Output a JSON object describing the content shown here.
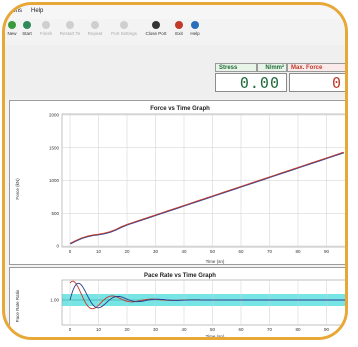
{
  "menu": {
    "item1": "ions",
    "item2": "Help"
  },
  "toolbar": [
    {
      "label": "New",
      "color": "#3b9b3b",
      "enabled": true
    },
    {
      "label": "Start",
      "color": "#2e8b57",
      "enabled": true
    },
    {
      "label": "Finish",
      "color": "#cccccc",
      "enabled": false
    },
    {
      "label": "Restart Te",
      "color": "#cccccc",
      "enabled": false
    },
    {
      "label": "Repeat",
      "color": "#cccccc",
      "enabled": false
    },
    {
      "label": "Port Settings",
      "color": "#cccccc",
      "enabled": false
    },
    {
      "label": "Close Port",
      "color": "#333333",
      "enabled": true
    },
    {
      "label": "Exit",
      "color": "#c0392b",
      "enabled": true
    },
    {
      "label": "Help",
      "color": "#2a6ebb",
      "enabled": true
    }
  ],
  "readouts": {
    "stress_label": "Stress",
    "stress_unit": "N/mm²",
    "stress_value": "0.00",
    "maxforce_label": "Max. Force",
    "maxforce_value": "0"
  },
  "force_graph": {
    "title": "Force vs Time Graph",
    "ylabel": "Force (kN)",
    "xlabel": "Time (sn)",
    "y_ticks": [
      "2000",
      "1500",
      "1000",
      "500",
      "0"
    ],
    "x_ticks": [
      "0",
      "10",
      "20",
      "30",
      "40",
      "50",
      "60",
      "70",
      "80",
      "90",
      "100"
    ]
  },
  "pace_graph": {
    "title": "Pace Rate vs Time Graph",
    "ylabel": "Pace Rate Ratio",
    "xlabel": "Time (sn)",
    "y_ticks": [
      "1.00"
    ],
    "x_ticks": [
      "0",
      "10",
      "20",
      "30",
      "40",
      "50",
      "60",
      "70",
      "80",
      "90",
      "100"
    ]
  },
  "colors": {
    "frame": "#E8A838",
    "force_line": "#c0392b",
    "force_line2": "#2c3e8f",
    "pace_band": "#5fe0e0",
    "value_text": "#1f6b3a"
  }
}
